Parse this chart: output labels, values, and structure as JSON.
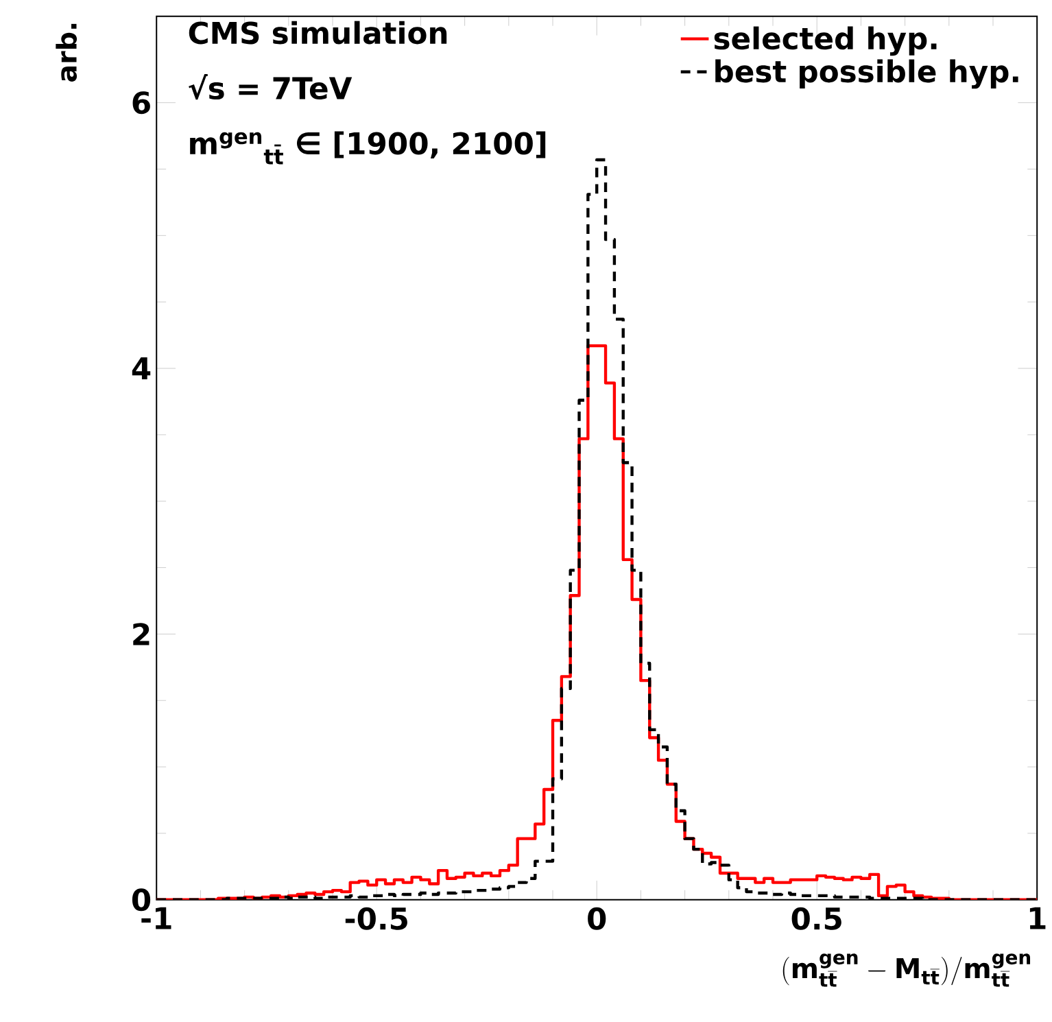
{
  "chart_data": {
    "type": "histogram",
    "ylabel": "arb.",
    "xlabel": "(\\mathbf{m}^{\\mathbf{gen}}_{\\mathbf{t}\\overline{\\mathbf{t}}} - \\mathbf{M}_{\\mathbf{t}\\overline{\\mathbf{t}}}) / \\mathbf{m}^{\\mathbf{gen}}_{\\mathbf{t}\\overline{\\mathbf{t}}}",
    "annotations": [
      "CMS simulation",
      "√s = 7TeV",
      "m$^{gen}$$_{tt̄}$ ∈ [1900, 2100]"
    ],
    "bins": [
      -1,
      -0.98,
      -0.96,
      -0.94,
      -0.92,
      -0.9,
      -0.88,
      -0.86,
      -0.84,
      -0.82,
      -0.8,
      -0.78,
      -0.76,
      -0.74,
      -0.72,
      -0.7,
      -0.68,
      -0.66,
      -0.64,
      -0.62,
      -0.6,
      -0.58,
      -0.56,
      -0.54,
      -0.52,
      -0.5,
      -0.48,
      -0.46,
      -0.44,
      -0.42,
      -0.4,
      -0.38,
      -0.36,
      -0.34,
      -0.32,
      -0.3,
      -0.28,
      -0.26,
      -0.24,
      -0.22,
      -0.2,
      -0.18,
      -0.16,
      -0.14,
      -0.12,
      -0.1,
      -0.08,
      -0.06,
      -0.04,
      -0.02,
      0,
      0.02,
      0.04,
      0.06,
      0.08,
      0.1,
      0.12,
      0.14,
      0.16,
      0.18,
      0.2,
      0.22,
      0.24,
      0.26,
      0.28,
      0.3,
      0.32,
      0.34,
      0.36,
      0.38,
      0.4,
      0.42,
      0.44,
      0.46,
      0.48,
      0.5,
      0.52,
      0.54,
      0.56,
      0.58,
      0.6,
      0.62,
      0.64,
      0.66,
      0.68,
      0.7,
      0.72,
      0.74,
      0.76,
      0.78,
      0.8,
      0.82,
      0.84,
      0.86,
      0.88,
      0.9,
      0.92,
      0.94,
      0.96,
      0.98,
      1
    ],
    "series": [
      {
        "name": "selected hyp.",
        "color": "#ff0000",
        "line_style": "solid",
        "values": [
          0,
          0,
          0,
          0,
          0,
          0,
          0,
          0.01,
          0.01,
          0.01,
          0.02,
          0.01,
          0.02,
          0.03,
          0.02,
          0.03,
          0.04,
          0.05,
          0.04,
          0.06,
          0.07,
          0.06,
          0.13,
          0.14,
          0.11,
          0.15,
          0.12,
          0.15,
          0.13,
          0.17,
          0.15,
          0.12,
          0.22,
          0.16,
          0.17,
          0.2,
          0.18,
          0.2,
          0.18,
          0.22,
          0.26,
          0.46,
          0.46,
          0.57,
          0.83,
          1.35,
          1.68,
          2.29,
          3.47,
          4.17,
          4.17,
          3.89,
          3.47,
          2.56,
          2.26,
          1.65,
          1.22,
          1.05,
          0.87,
          0.59,
          0.46,
          0.38,
          0.35,
          0.32,
          0.2,
          0.2,
          0.16,
          0.16,
          0.13,
          0.16,
          0.13,
          0.13,
          0.15,
          0.15,
          0.15,
          0.18,
          0.17,
          0.16,
          0.15,
          0.17,
          0.16,
          0.19,
          0.03,
          0.1,
          0.11,
          0.06,
          0.03,
          0.02,
          0.01,
          0.01,
          0,
          0,
          0,
          0,
          0,
          0,
          0,
          0,
          0,
          0
        ]
      },
      {
        "name": "best possible hyp.",
        "color": "#000000",
        "line_style": "dashed",
        "values": [
          0,
          0,
          0,
          0,
          0,
          0,
          0,
          0,
          0.01,
          0.01,
          0.01,
          0.01,
          0.01,
          0.01,
          0.02,
          0.01,
          0.02,
          0.02,
          0.01,
          0.02,
          0.02,
          0.02,
          0.03,
          0.02,
          0.03,
          0.03,
          0.04,
          0.03,
          0.04,
          0.04,
          0.05,
          0.04,
          0.05,
          0.05,
          0.06,
          0.06,
          0.07,
          0.07,
          0.08,
          0.09,
          0.1,
          0.13,
          0.16,
          0.29,
          0.29,
          0.91,
          1.59,
          2.48,
          3.76,
          5.31,
          5.57,
          4.97,
          4.37,
          3.29,
          2.48,
          1.78,
          1.28,
          1.15,
          0.87,
          0.67,
          0.46,
          0.38,
          0.27,
          0.28,
          0.26,
          0.15,
          0.09,
          0.06,
          0.05,
          0.05,
          0.04,
          0.05,
          0.04,
          0.03,
          0.03,
          0.03,
          0.03,
          0.02,
          0.02,
          0.02,
          0.02,
          0.01,
          0.01,
          0.01,
          0.01,
          0.01,
          0.01,
          0,
          0,
          0,
          0,
          0,
          0,
          0,
          0,
          0,
          0,
          0,
          0,
          0
        ]
      }
    ],
    "xlim": [
      -1,
      1
    ],
    "ylim": [
      0,
      6.65
    ],
    "xticks": [
      -1,
      -0.5,
      0,
      0.5,
      1
    ],
    "yticks": [
      0,
      2,
      4,
      6
    ],
    "legend": "top right"
  }
}
